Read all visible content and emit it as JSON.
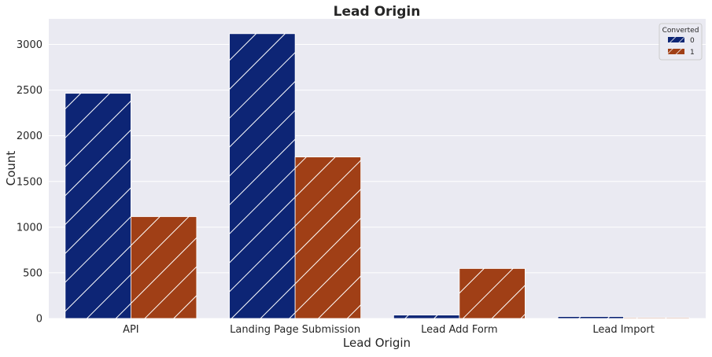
{
  "chart_data": {
    "type": "bar",
    "title": "Lead Origin",
    "xlabel": "Lead Origin",
    "ylabel": "Count",
    "categories": [
      "API",
      "Landing Page Submission",
      "Lead Add Form",
      "Lead Import"
    ],
    "series": [
      {
        "name": "0",
        "values": [
          2465,
          3118,
          37,
          21
        ],
        "color": "#0d2575",
        "hatch": "//"
      },
      {
        "name": "1",
        "values": [
          1115,
          1768,
          547,
          9
        ],
        "color": "#a03f16",
        "hatch": "//"
      }
    ],
    "ylim": [
      0,
      3280
    ],
    "yticks": [
      0,
      500,
      1000,
      1500,
      2000,
      2500,
      3000
    ],
    "legend": {
      "title": "Converted",
      "position": "top-right"
    },
    "grid": true,
    "background": "#eaeaf2"
  }
}
